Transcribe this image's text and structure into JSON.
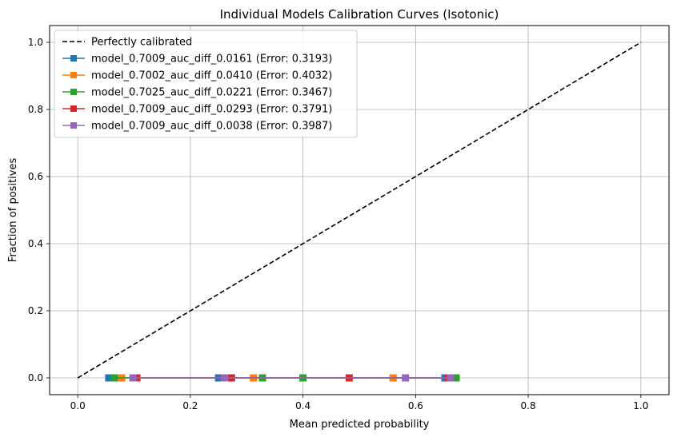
{
  "chart_data": {
    "type": "line",
    "title": "Individual Models Calibration Curves (Isotonic)",
    "xlabel": "Mean predicted probability",
    "ylabel": "Fraction of positives",
    "xlim": [
      -0.05,
      1.05
    ],
    "ylim": [
      -0.05,
      1.05
    ],
    "xticks": [
      "0.0",
      "0.2",
      "0.4",
      "0.6",
      "0.8",
      "1.0"
    ],
    "yticks": [
      "0.0",
      "0.2",
      "0.4",
      "0.6",
      "0.8",
      "1.0"
    ],
    "grid": true,
    "legend_position": "top-left",
    "reference": {
      "name": "Perfectly calibrated",
      "x": [
        0,
        1
      ],
      "y": [
        0,
        1
      ],
      "color": "#000000",
      "dash": true
    },
    "series": [
      {
        "name": "model_0.7009_auc_diff_0.0161 (Error: 0.3193)",
        "color": "#1f77b4",
        "x": [
          0.055,
          0.25,
          0.652
        ],
        "y": [
          0,
          0,
          0
        ]
      },
      {
        "name": "model_0.7002_auc_diff_0.0410 (Error: 0.4032)",
        "color": "#ff7f0e",
        "x": [
          0.078,
          0.312,
          0.56
        ],
        "y": [
          0,
          0,
          0
        ]
      },
      {
        "name": "model_0.7025_auc_diff_0.0221 (Error: 0.3467)",
        "color": "#2ca02c",
        "x": [
          0.065,
          0.328,
          0.4,
          0.672
        ],
        "y": [
          0,
          0,
          0,
          0
        ]
      },
      {
        "name": "model_0.7009_auc_diff_0.0293 (Error: 0.3791)",
        "color": "#d62728",
        "x": [
          0.105,
          0.273,
          0.482,
          0.658
        ],
        "y": [
          0,
          0,
          0,
          0
        ]
      },
      {
        "name": "model_0.7009_auc_diff_0.0038 (Error: 0.3987)",
        "color": "#9467bd",
        "x": [
          0.098,
          0.26,
          0.582,
          0.662
        ],
        "y": [
          0,
          0,
          0,
          0
        ]
      }
    ]
  }
}
